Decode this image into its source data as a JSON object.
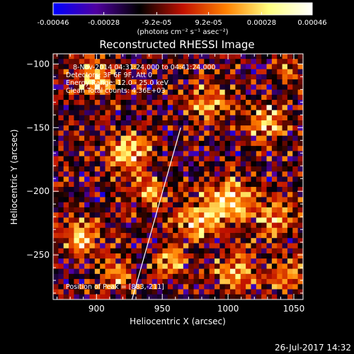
{
  "colorbar": {
    "tick_labels": [
      "-0.00046",
      "-0.00028",
      "-9.2e-05",
      "9.2e-05",
      "0.00028",
      "0.00046"
    ],
    "tick_values": [
      -0.00046,
      -0.00028,
      -9.2e-05,
      9.2e-05,
      0.00028,
      0.00046
    ],
    "range": [
      -0.00046,
      0.00046
    ],
    "units": "(photons cm⁻² s⁻¹ asec⁻²)",
    "colors": [
      "#0000ff",
      "#5000a0",
      "#000000",
      "#c01000",
      "#ff8000",
      "#ffff80",
      "#ffffff"
    ]
  },
  "plot": {
    "title": "Reconstructed RHESSI Image",
    "xlabel": "Heliocentric X (arcsec)",
    "ylabel": "Heliocentric Y (arcsec)",
    "info": {
      "time": "8-Nov-2014 04:31:24.000 to 04:41:24.000",
      "detectors": "Detectors: 3F 6F 9F, Att 0",
      "energy": "Energy Range: 12.0 - 25.0 keV",
      "clean": "Clean     Total counts: 4.36E+03"
    },
    "peak": "Position of Peak = [883,-211]",
    "footer_date": "26-Jul-2017 14:32"
  },
  "chart_data": {
    "type": "heatmap",
    "title": "Reconstructed RHESSI Image",
    "xlabel": "Heliocentric X (arcsec)",
    "ylabel": "Heliocentric Y (arcsec)",
    "xlim": [
      867,
      1057
    ],
    "ylim": [
      -285,
      -92
    ],
    "xticks": [
      900,
      950,
      1000,
      1050
    ],
    "yticks": [
      -100,
      -150,
      -200,
      -250
    ],
    "zlim": [
      -0.00046,
      0.00046
    ],
    "grid_size": [
      48,
      48
    ],
    "limb_line": [
      [
        927,
        -285
      ],
      [
        964,
        -150
      ]
    ],
    "blobs": [
      [
        900,
        -110,
        0.00036,
        14
      ],
      [
        925,
        -170,
        0.0004,
        16
      ],
      [
        940,
        -200,
        0.0003,
        12
      ],
      [
        985,
        -130,
        0.00035,
        16
      ],
      [
        1030,
        -145,
        0.0004,
        14
      ],
      [
        1000,
        -210,
        0.00042,
        18
      ],
      [
        975,
        -225,
        0.00038,
        14
      ],
      [
        1035,
        -220,
        0.00036,
        14
      ],
      [
        890,
        -235,
        0.00036,
        14
      ],
      [
        915,
        -265,
        0.00032,
        12
      ],
      [
        1005,
        -262,
        0.0004,
        14
      ],
      [
        1045,
        -265,
        0.00034,
        12
      ],
      [
        955,
        -255,
        0.0003,
        12
      ],
      [
        1045,
        -105,
        0.00025,
        10
      ]
    ],
    "seed": 7,
    "peak_position": [
      883,
      -211
    ]
  }
}
